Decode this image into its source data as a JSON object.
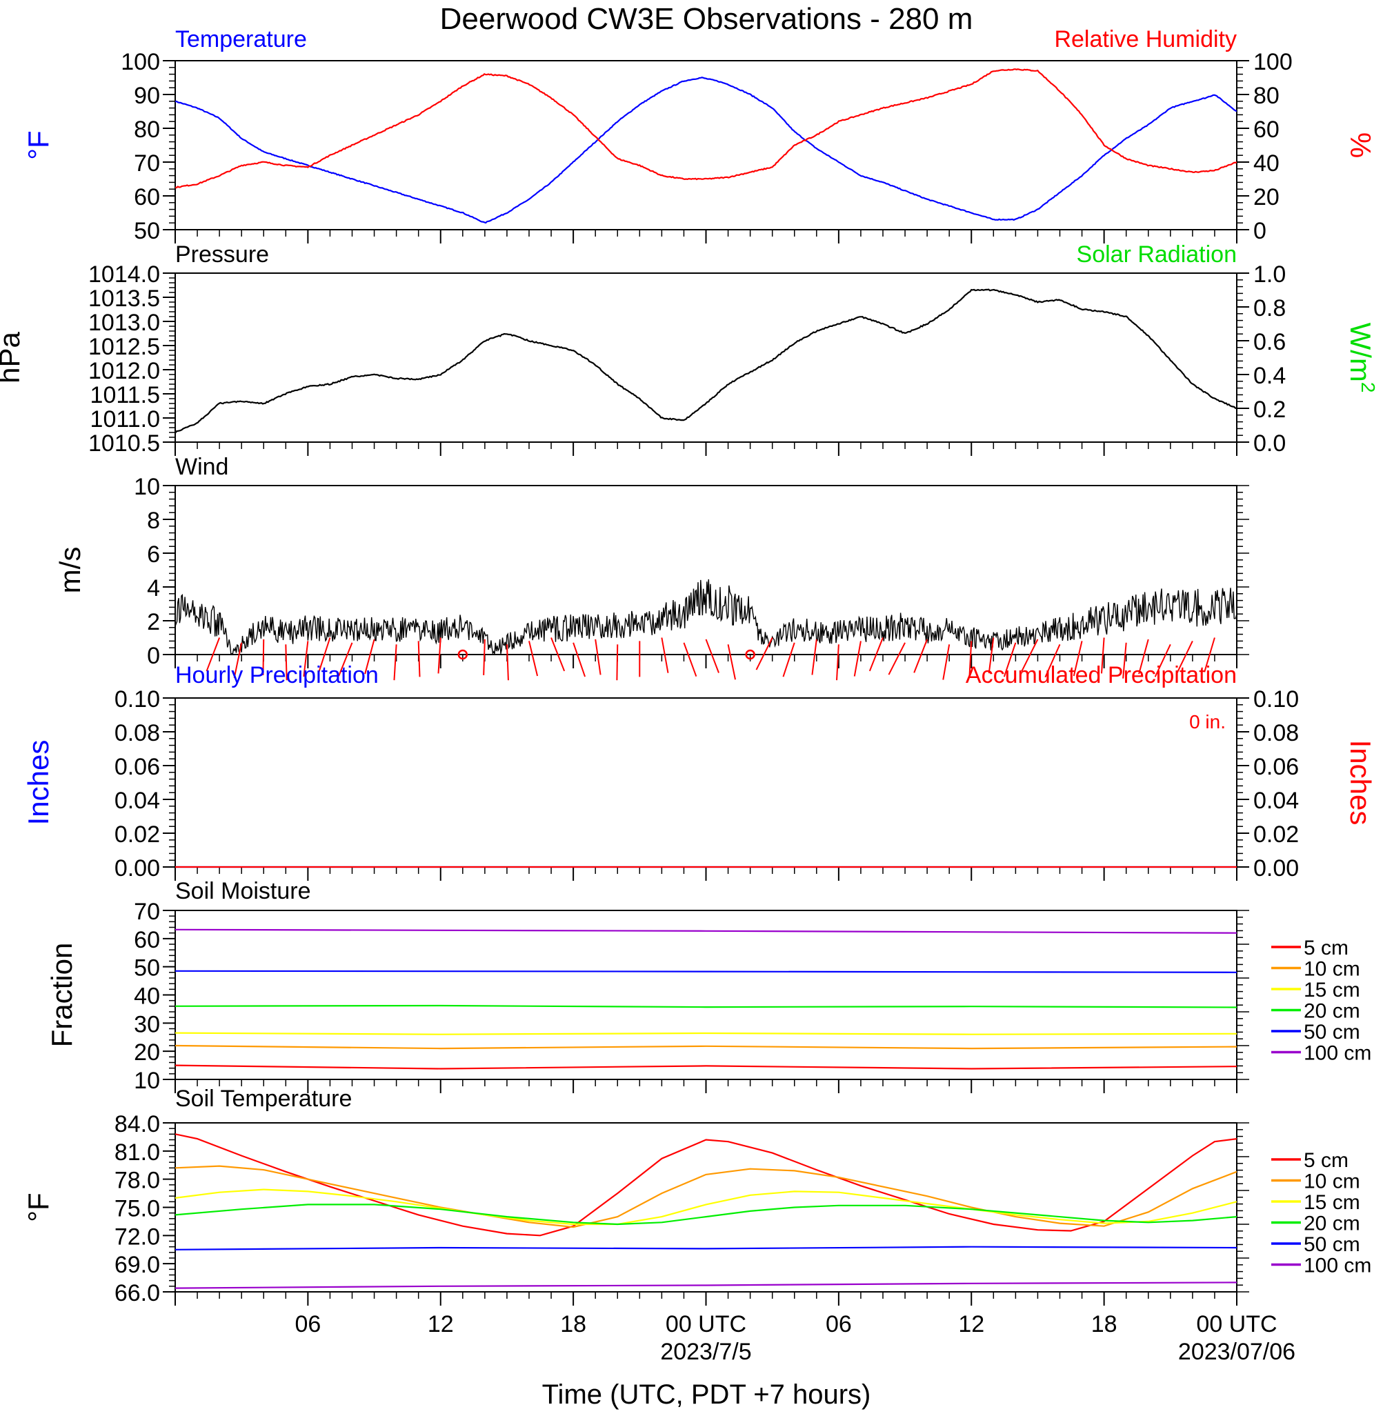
{
  "title": "Deerwood CW3E Observations - 280 m",
  "xlabel": "Time (UTC, PDT +7 hours)",
  "x_ticks": [
    {
      "h": 6,
      "label": "06",
      "sub": ""
    },
    {
      "h": 12,
      "label": "12",
      "sub": ""
    },
    {
      "h": 18,
      "label": "18",
      "sub": ""
    },
    {
      "h": 24,
      "label": "00 UTC",
      "sub": "2023/7/5"
    },
    {
      "h": 30,
      "label": "06",
      "sub": ""
    },
    {
      "h": 36,
      "label": "12",
      "sub": ""
    },
    {
      "h": 42,
      "label": "18",
      "sub": ""
    },
    {
      "h": 48,
      "label": "00 UTC",
      "sub": "2023/07/06"
    }
  ],
  "colors": {
    "temperature": "#0000ff",
    "humidity": "#ff0000",
    "pressure": "#000000",
    "solar": "#00ee00",
    "wind": "#000000",
    "barb": "#ff0000",
    "hourly": "#0000ff",
    "accum": "#ff0000"
  },
  "chart_data": [
    {
      "id": "temp_rh",
      "type": "line",
      "title_left": "Temperature",
      "title_right": "Relative Humidity",
      "ylabel_left": "°F",
      "ylabel_right": "%",
      "ylim_left": [
        50,
        100
      ],
      "ylim_right": [
        0,
        100
      ],
      "yticks_left": [
        "50",
        "60",
        "70",
        "80",
        "90",
        "100"
      ],
      "yticks_right": [
        "0",
        "20",
        "40",
        "60",
        "80",
        "100"
      ],
      "xlim_hours": [
        0,
        48
      ],
      "series": [
        {
          "name": "Temperature",
          "axis": "left",
          "color": "#0000ff",
          "x": [
            0,
            1,
            2,
            2.5,
            3,
            4,
            5,
            6,
            8,
            10,
            12,
            13,
            14,
            15,
            16,
            17,
            18,
            19,
            20,
            21,
            22,
            23,
            23.8,
            24.5,
            25,
            26,
            27,
            28,
            29,
            30,
            31,
            32,
            34,
            36,
            37,
            38,
            39,
            40,
            41,
            42,
            43,
            44,
            45,
            46,
            46.6,
            47,
            48
          ],
          "y": [
            88,
            86,
            83,
            80,
            77,
            73,
            71,
            69,
            65,
            61,
            57,
            55,
            52,
            55,
            59,
            64,
            70,
            76,
            82,
            87,
            91,
            94,
            95,
            94,
            93,
            90,
            86,
            79,
            74,
            70,
            66,
            64,
            59,
            55,
            53,
            53,
            56,
            61,
            66,
            72,
            77,
            81,
            86,
            88,
            89,
            90,
            85
          ]
        },
        {
          "name": "Relative Humidity",
          "axis": "right",
          "color": "#ff0000",
          "x": [
            0,
            1,
            2,
            3,
            4,
            5,
            6,
            7,
            8,
            9,
            10,
            11,
            12,
            13,
            14,
            15,
            16,
            17,
            18,
            19,
            20,
            21,
            22,
            23,
            24,
            25,
            26,
            27,
            28,
            29,
            30,
            31,
            32,
            34,
            36,
            37,
            38,
            39,
            40,
            41,
            42,
            43,
            44,
            45,
            46,
            47,
            48
          ],
          "y": [
            25,
            27,
            32,
            38,
            40,
            38,
            37,
            44,
            50,
            56,
            62,
            68,
            76,
            85,
            92,
            91,
            86,
            78,
            68,
            55,
            42,
            38,
            32,
            30,
            30,
            31,
            34,
            37,
            50,
            56,
            64,
            68,
            72,
            78,
            86,
            94,
            95,
            94,
            82,
            68,
            50,
            42,
            38,
            36,
            34,
            35,
            40
          ]
        }
      ]
    },
    {
      "id": "pressure",
      "type": "line",
      "title_left": "Pressure",
      "title_right": "Solar Radiation",
      "ylabel_left": "hPa",
      "ylabel_right": "W/m",
      "ylabel_right_sup": "2",
      "ylim_left": [
        1010.5,
        1014.0
      ],
      "ylim_right": [
        0,
        1.0
      ],
      "yticks_left": [
        "1010.5",
        "1011.0",
        "1011.5",
        "1012.0",
        "1012.5",
        "1013.0",
        "1013.5",
        "1014.0"
      ],
      "yticks_right": [
        "0.0",
        "0.2",
        "0.4",
        "0.6",
        "0.8",
        "1.0"
      ],
      "xlim_hours": [
        0,
        48
      ],
      "series": [
        {
          "name": "Pressure",
          "axis": "left",
          "color": "#000000",
          "x": [
            0,
            1,
            2,
            3,
            4,
            5,
            6,
            7,
            8,
            9,
            10,
            11,
            12,
            13,
            14,
            15,
            16,
            17,
            18,
            19,
            20,
            21,
            22,
            23,
            24,
            25,
            26,
            27,
            28,
            29,
            30,
            31,
            32,
            33,
            34,
            35,
            36,
            37,
            38,
            39,
            40,
            41,
            42,
            43,
            44,
            45,
            46,
            47,
            48
          ],
          "y": [
            1010.7,
            1010.9,
            1011.3,
            1011.35,
            1011.3,
            1011.5,
            1011.65,
            1011.7,
            1011.85,
            1011.9,
            1011.82,
            1011.8,
            1011.9,
            1012.2,
            1012.6,
            1012.75,
            1012.6,
            1012.5,
            1012.4,
            1012.1,
            1011.7,
            1011.4,
            1011.0,
            1010.95,
            1011.3,
            1011.7,
            1011.95,
            1012.2,
            1012.55,
            1012.8,
            1012.95,
            1013.1,
            1012.95,
            1012.75,
            1012.95,
            1013.25,
            1013.65,
            1013.65,
            1013.55,
            1013.4,
            1013.45,
            1013.25,
            1013.2,
            1013.1,
            1012.7,
            1012.2,
            1011.7,
            1011.4,
            1011.2
          ]
        }
      ]
    },
    {
      "id": "wind",
      "type": "line",
      "title_left": "Wind",
      "ylabel_left": "m/s",
      "ylim_left": [
        0,
        10
      ],
      "yticks_left": [
        "0",
        "2",
        "4",
        "6",
        "8",
        "10"
      ],
      "xlim_hours": [
        0,
        48
      ],
      "series": [
        {
          "name": "Wind",
          "axis": "left",
          "color": "#000000",
          "x": [
            0,
            1,
            2,
            2.5,
            3,
            4,
            5,
            6,
            7,
            8,
            9,
            10,
            11,
            12,
            13,
            14,
            14.5,
            15,
            16,
            17,
            18,
            19,
            20,
            21,
            22,
            23,
            23.5,
            24,
            25,
            26,
            26.5,
            27,
            28,
            29,
            30,
            31,
            32,
            33,
            34,
            35,
            36,
            37,
            38,
            39,
            40,
            41,
            42,
            43,
            44,
            45,
            46,
            47,
            48
          ],
          "y": [
            2.8,
            2.5,
            1.8,
            0.4,
            0.6,
            1.8,
            1.2,
            1.6,
            1.5,
            1.4,
            1.5,
            1.5,
            1.5,
            1.4,
            1.6,
            1.0,
            0.3,
            0.8,
            1.3,
            1.5,
            1.6,
            1.7,
            1.8,
            1.8,
            2.1,
            2.4,
            3.0,
            3.4,
            3.0,
            2.4,
            1.0,
            0.7,
            1.6,
            1.4,
            1.3,
            1.5,
            1.5,
            1.7,
            1.4,
            1.5,
            1.0,
            0.8,
            1.0,
            1.2,
            1.5,
            1.8,
            2.1,
            2.4,
            2.7,
            3.0,
            2.8,
            2.7,
            3.0
          ]
        }
      ],
      "calm_hours": [
        13,
        26
      ]
    },
    {
      "id": "precip",
      "type": "line",
      "title_left": "Hourly Precipitation",
      "title_right": "Accumulated Precipitation",
      "annotation": "0 in.",
      "ylabel_left": "Inches",
      "ylabel_right": "Inches",
      "ylim_left": [
        0,
        0.1
      ],
      "ylim_right": [
        0,
        0.1
      ],
      "yticks_left": [
        "0.00",
        "0.02",
        "0.04",
        "0.06",
        "0.08",
        "0.10"
      ],
      "yticks_right": [
        "0.00",
        "0.02",
        "0.04",
        "0.06",
        "0.08",
        "0.10"
      ],
      "xlim_hours": [
        0,
        48
      ],
      "series": [
        {
          "name": "Hourly Precipitation",
          "axis": "left",
          "color": "#0000ff",
          "x": [
            0,
            48
          ],
          "y": [
            0,
            0
          ]
        },
        {
          "name": "Accumulated Precipitation",
          "axis": "right",
          "color": "#ff0000",
          "x": [
            0,
            48
          ],
          "y": [
            0,
            0
          ]
        }
      ]
    },
    {
      "id": "soil_moisture",
      "type": "line",
      "title_left": "Soil Moisture",
      "ylabel_left": "Fraction",
      "ylim_left": [
        10,
        70
      ],
      "yticks_left": [
        "10",
        "20",
        "30",
        "40",
        "50",
        "60",
        "70"
      ],
      "xlim_hours": [
        0,
        48
      ],
      "legend": "right",
      "series": [
        {
          "name": "5 cm",
          "color": "#ff0000",
          "x": [
            0,
            12,
            24,
            36,
            48
          ],
          "y": [
            15,
            13.8,
            14.8,
            13.8,
            14.6
          ]
        },
        {
          "name": "10 cm",
          "color": "#ff9900",
          "x": [
            0,
            12,
            24,
            36,
            48
          ],
          "y": [
            22,
            21,
            21.8,
            21,
            21.6
          ]
        },
        {
          "name": "15 cm",
          "color": "#ffff00",
          "x": [
            0,
            12,
            24,
            36,
            48
          ],
          "y": [
            26.5,
            26.0,
            26.4,
            26.0,
            26.2
          ]
        },
        {
          "name": "20 cm",
          "color": "#00ee00",
          "x": [
            0,
            12,
            24,
            36,
            48
          ],
          "y": [
            36,
            36.2,
            35.7,
            35.9,
            35.6
          ]
        },
        {
          "name": "50 cm",
          "color": "#0000ff",
          "x": [
            0,
            24,
            48
          ],
          "y": [
            48.5,
            48.3,
            48.0
          ]
        },
        {
          "name": "100 cm",
          "color": "#9900cc",
          "x": [
            0,
            24,
            48
          ],
          "y": [
            63.2,
            62.7,
            62.0
          ]
        }
      ]
    },
    {
      "id": "soil_temp",
      "type": "line",
      "title_left": "Soil Temperature",
      "ylabel_left": "°F",
      "ylim_left": [
        66,
        84
      ],
      "yticks_left": [
        "66.0",
        "69.0",
        "72.0",
        "75.0",
        "78.0",
        "81.0",
        "84.0"
      ],
      "xlim_hours": [
        0,
        48
      ],
      "legend": "right",
      "series": [
        {
          "name": "5 cm",
          "color": "#ff0000",
          "x": [
            0,
            1,
            3,
            5,
            7,
            9,
            11,
            13,
            15,
            16.5,
            18,
            20,
            22,
            24,
            25,
            27,
            29,
            31,
            33,
            35,
            37,
            39,
            40.5,
            42,
            44,
            46,
            47,
            48
          ],
          "y": [
            82.8,
            82.3,
            80.5,
            78.8,
            77.2,
            75.7,
            74.2,
            73.0,
            72.2,
            72.0,
            73.0,
            76.5,
            80.2,
            82.2,
            82.0,
            80.8,
            79.0,
            77.3,
            75.8,
            74.3,
            73.2,
            72.6,
            72.5,
            73.5,
            77.0,
            80.5,
            82.0,
            82.3
          ]
        },
        {
          "name": "10 cm",
          "color": "#ff9900",
          "x": [
            0,
            2,
            4,
            6,
            8,
            10,
            12,
            14,
            16,
            18,
            20,
            22,
            24,
            26,
            28,
            30,
            32,
            34,
            36,
            38,
            40,
            42,
            44,
            46,
            48
          ],
          "y": [
            79.2,
            79.4,
            79.0,
            78.0,
            77.0,
            76.0,
            75.0,
            74.2,
            73.4,
            72.9,
            74.0,
            76.5,
            78.5,
            79.1,
            78.9,
            78.2,
            77.2,
            76.2,
            75.0,
            74.0,
            73.3,
            73.0,
            74.5,
            77.0,
            78.8
          ]
        },
        {
          "name": "15 cm",
          "color": "#ffff00",
          "x": [
            0,
            2,
            4,
            6,
            8,
            10,
            12,
            14,
            16,
            18,
            20,
            22,
            24,
            26,
            28,
            30,
            32,
            34,
            36,
            38,
            40,
            42,
            44,
            46,
            48
          ],
          "y": [
            76.0,
            76.6,
            76.9,
            76.7,
            76.2,
            75.6,
            74.9,
            74.2,
            73.6,
            73.2,
            73.2,
            74.0,
            75.3,
            76.3,
            76.7,
            76.6,
            76.0,
            75.4,
            74.8,
            74.2,
            73.7,
            73.3,
            73.5,
            74.4,
            75.6
          ]
        },
        {
          "name": "20 cm",
          "color": "#00ee00",
          "x": [
            0,
            3,
            6,
            9,
            12,
            15,
            18,
            20,
            22,
            24,
            26,
            28,
            30,
            33,
            36,
            39,
            42,
            44,
            46,
            48
          ],
          "y": [
            74.2,
            74.8,
            75.3,
            75.3,
            74.8,
            74.0,
            73.4,
            73.2,
            73.4,
            74.0,
            74.6,
            75.0,
            75.2,
            75.2,
            74.8,
            74.2,
            73.6,
            73.4,
            73.6,
            74.0
          ]
        },
        {
          "name": "50 cm",
          "color": "#0000ff",
          "x": [
            0,
            12,
            24,
            36,
            48
          ],
          "y": [
            70.5,
            70.7,
            70.6,
            70.8,
            70.7
          ]
        },
        {
          "name": "100 cm",
          "color": "#9900cc",
          "x": [
            0,
            12,
            24,
            36,
            48
          ],
          "y": [
            66.4,
            66.6,
            66.7,
            66.9,
            67.0
          ]
        }
      ]
    }
  ]
}
